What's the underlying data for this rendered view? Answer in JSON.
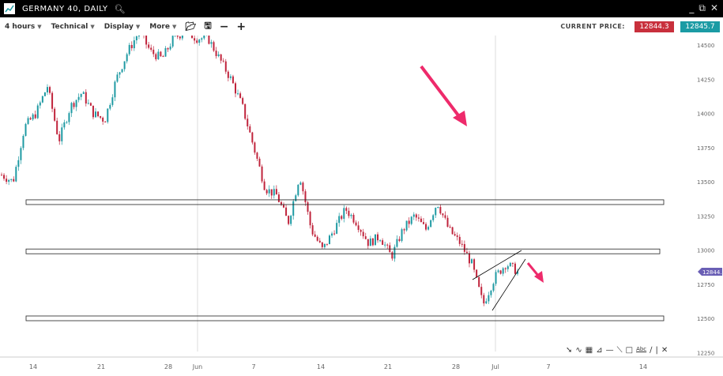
{
  "window": {
    "title": "GERMANY 40, DAILY"
  },
  "toolbar": {
    "timeframe": "4 hours",
    "technical": "Technical",
    "display": "Display",
    "more": "More",
    "icons": [
      "folder-open-icon",
      "save-icon",
      "zoom-out-icon",
      "zoom-in-icon"
    ]
  },
  "price": {
    "label": "CURRENT PRICE:",
    "bid": "12844.3",
    "ask": "12845.7",
    "bid_color": "#c8303c",
    "ask_color": "#1b9ba4",
    "tag": "12844.3",
    "tag_color": "#6a5fb5"
  },
  "chart": {
    "y_ticks": [
      "14500",
      "14250",
      "14000",
      "13750",
      "13500",
      "13250",
      "13000",
      "12750",
      "12500",
      "12250"
    ],
    "x_ticks": [
      "14",
      "21",
      "28",
      "Jun",
      "7",
      "14",
      "21",
      "28",
      "Jul",
      "7",
      "14"
    ],
    "up_color": "#1f9aa3",
    "down_color": "#c0243c",
    "price_keypoints": [
      13550,
      13500,
      13900,
      14000,
      14200,
      13800,
      14050,
      14150,
      14000,
      13950,
      14250,
      14450,
      14600,
      14450,
      14400,
      14550,
      14600,
      14550,
      14550,
      14400,
      14250,
      14050,
      13750,
      13450,
      13400,
      13200,
      13550,
      13150,
      13000,
      13150,
      13300,
      13200,
      13050,
      13100,
      12950,
      13150,
      13250,
      13150,
      13350,
      13150,
      13050,
      12900,
      12600,
      12800,
      12900,
      12844
    ],
    "support_resistance_levels": [
      13350,
      12990,
      12500
    ]
  },
  "drawing_tools": [
    "pointer-icon",
    "curve-icon",
    "fibonacci-icon",
    "fan-icon",
    "horizontal-line-icon",
    "trend-line-icon",
    "rectangle-icon",
    "text-icon",
    "line-icon",
    "separator",
    "delete-icon"
  ]
}
